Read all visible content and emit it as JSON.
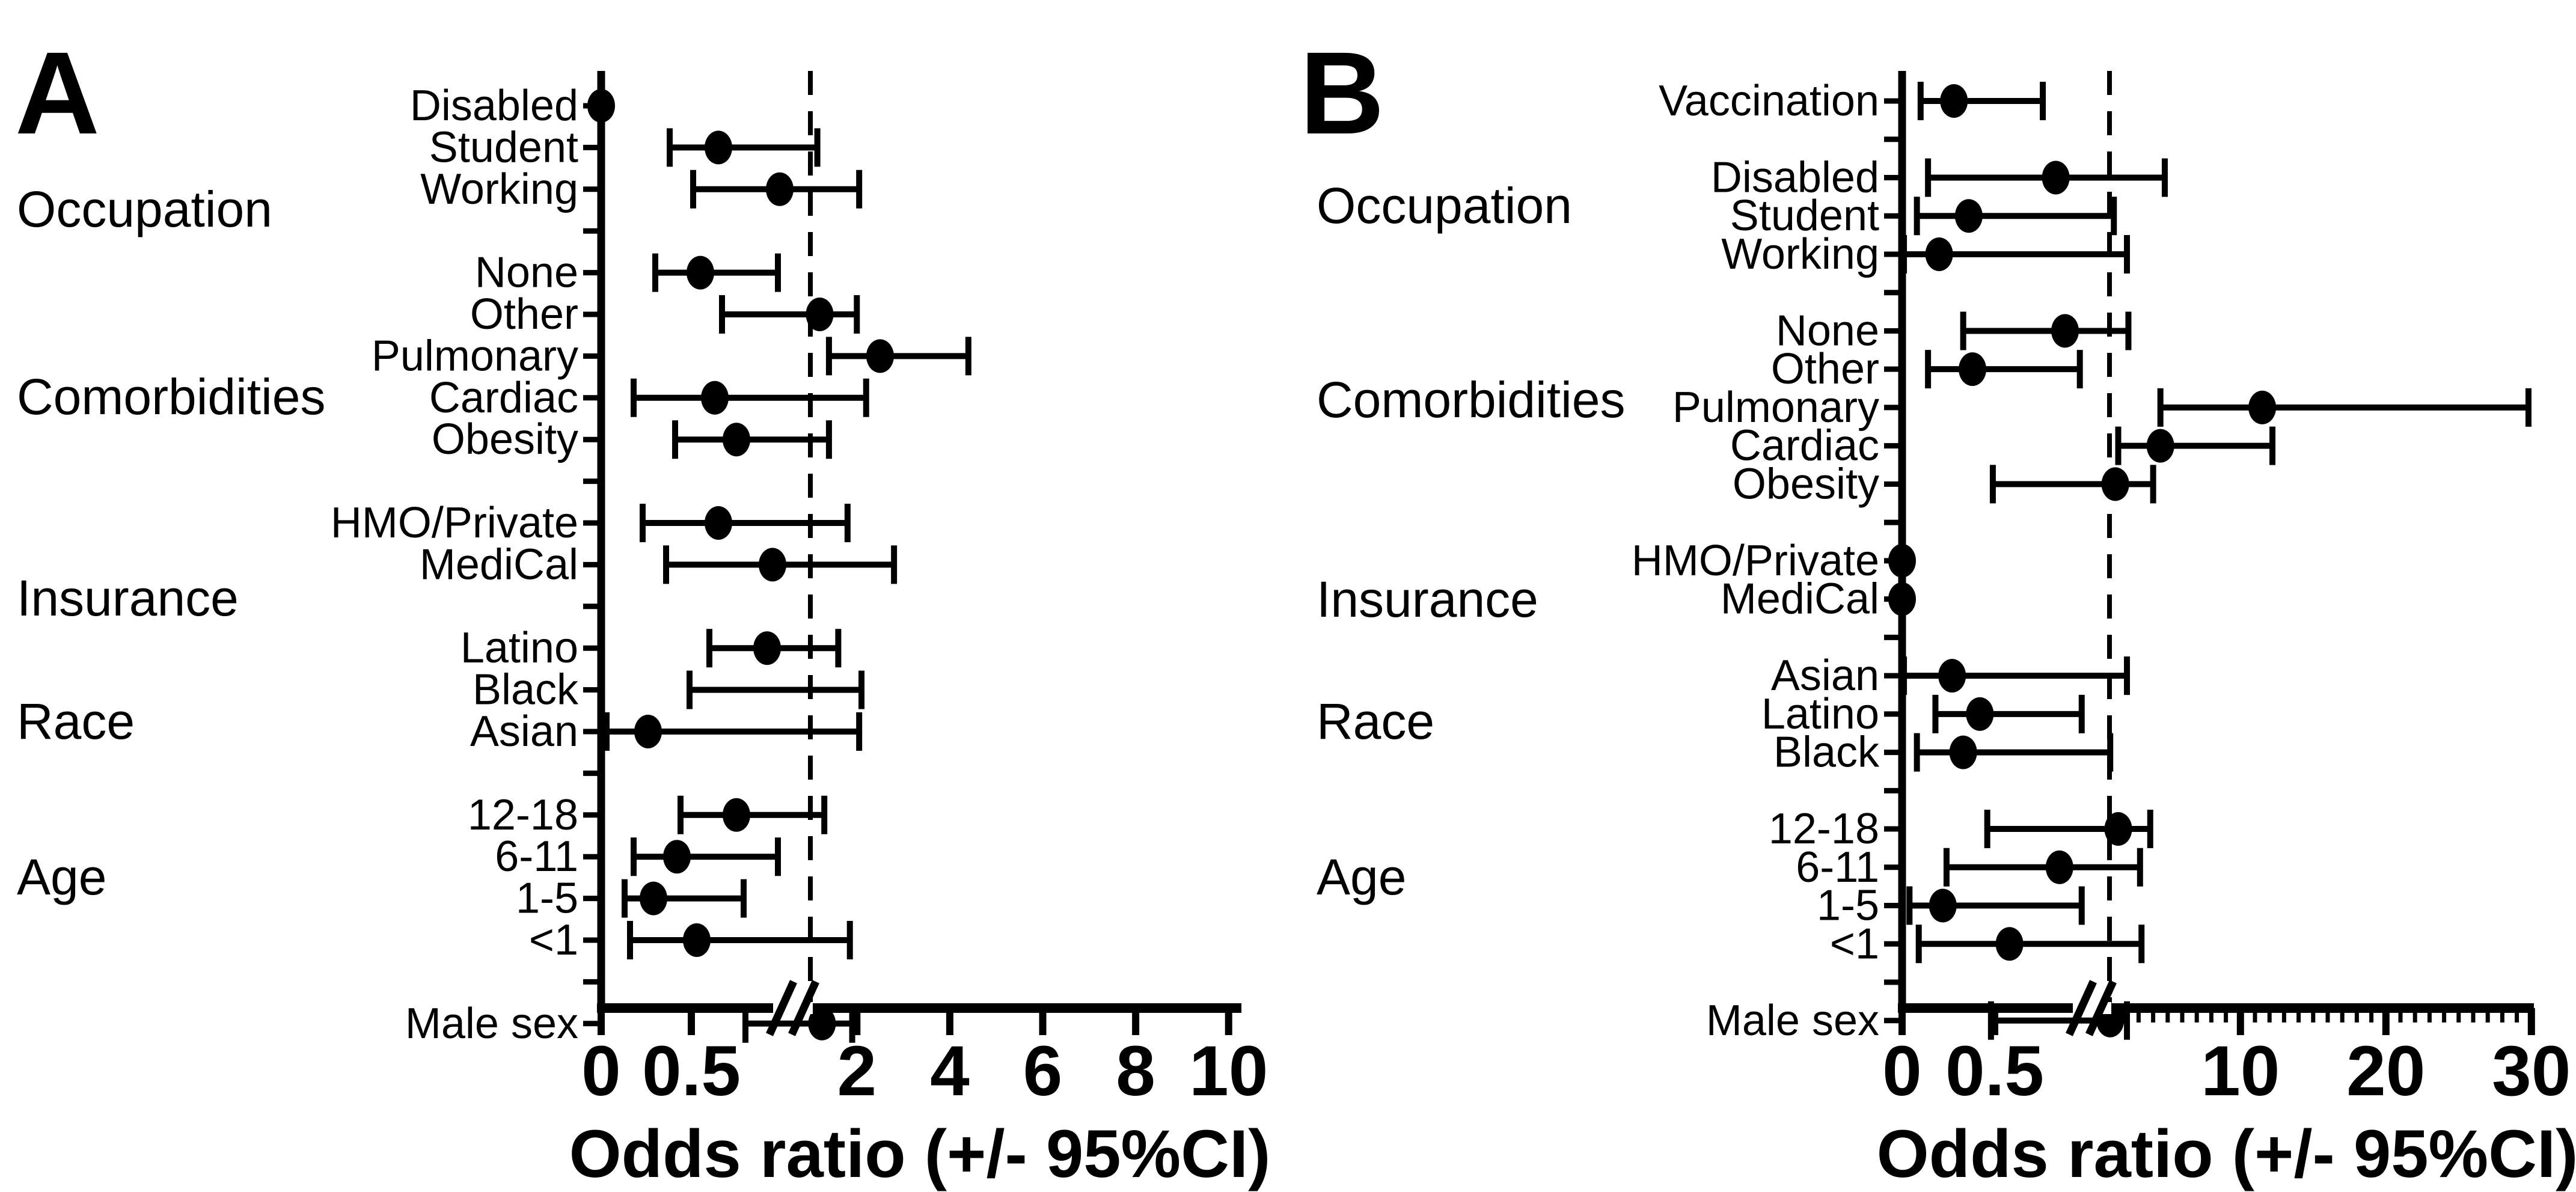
{
  "figure": {
    "background": "#ffffff",
    "ink_color": "#000000",
    "axis_title": "Odds ratio (+/- 95%CI)"
  },
  "chart_data": [
    {
      "type": "scatter",
      "subtype": "forest-plot",
      "panel_letter": "A",
      "xlabel": "Odds ratio (+/- 95%CI)",
      "reference_line_value": 1,
      "axis_break": true,
      "x_ticks_left": [
        {
          "v": 0,
          "label": "0"
        },
        {
          "v": 0.5,
          "label": "0.5"
        }
      ],
      "x_ticks_right": [
        {
          "v": 2,
          "label": "2"
        },
        {
          "v": 4,
          "label": "4"
        },
        {
          "v": 6,
          "label": "6"
        },
        {
          "v": 8,
          "label": "8"
        },
        {
          "v": 10,
          "label": "10"
        }
      ],
      "minor_ticks_right": false,
      "groups": [
        {
          "label": "Occupation"
        },
        {
          "label": "Comorbidities"
        },
        {
          "label": "Insurance"
        },
        {
          "label": "Race"
        },
        {
          "label": "Age"
        }
      ],
      "rows": [
        {
          "label": "Disabled",
          "or": 0.0,
          "lo": null,
          "hi": null,
          "gap_after": false
        },
        {
          "label": "Student",
          "or": 0.65,
          "lo": 0.38,
          "hi": 1.15,
          "gap_after": false
        },
        {
          "label": "Working",
          "or": 0.99,
          "lo": 0.51,
          "hi": 2.05,
          "gap_after": true
        },
        {
          "label": "None",
          "or": 0.55,
          "lo": 0.3,
          "hi": 0.98,
          "gap_after": false
        },
        {
          "label": "Other",
          "or": 1.2,
          "lo": 0.67,
          "hi": 2.0,
          "gap_after": false
        },
        {
          "label": "Pulmonary",
          "or": 2.5,
          "lo": 1.4,
          "hi": 4.4,
          "gap_after": false
        },
        {
          "label": "Cardiac",
          "or": 0.63,
          "lo": 0.18,
          "hi": 2.2,
          "gap_after": false
        },
        {
          "label": "Obesity",
          "or": 0.75,
          "lo": 0.41,
          "hi": 1.4,
          "gap_after": true
        },
        {
          "label": "HMO/Private",
          "or": 0.65,
          "lo": 0.23,
          "hi": 1.8,
          "gap_after": false
        },
        {
          "label": "MediCal",
          "or": 0.95,
          "lo": 0.36,
          "hi": 2.8,
          "gap_after": true
        },
        {
          "label": "Latino",
          "or": 0.92,
          "lo": 0.6,
          "hi": 1.6,
          "gap_after": false
        },
        {
          "label": "Black",
          "or": null,
          "lo": 0.49,
          "hi": 2.1,
          "gap_after": false
        },
        {
          "label": "Asian",
          "or": 0.26,
          "lo": 0.03,
          "hi": 2.05,
          "gap_after": true
        },
        {
          "label": "12-18",
          "or": 0.75,
          "lo": 0.44,
          "hi": 1.3,
          "gap_after": false
        },
        {
          "label": "6-11",
          "or": 0.42,
          "lo": 0.18,
          "hi": 0.98,
          "gap_after": false
        },
        {
          "label": "1-5",
          "or": 0.29,
          "lo": 0.13,
          "hi": 0.79,
          "gap_after": false
        },
        {
          "label": "<1",
          "or": 0.53,
          "lo": 0.16,
          "hi": 1.85,
          "gap_after": true
        },
        {
          "label": "Male sex",
          "or": 1.25,
          "lo": 0.8,
          "hi": 1.9,
          "gap_after": false
        }
      ]
    },
    {
      "type": "scatter",
      "subtype": "forest-plot",
      "panel_letter": "B",
      "xlabel": "Odds ratio (+/- 95%CI)",
      "reference_line_value": 1,
      "axis_break": true,
      "x_ticks_left": [
        {
          "v": 0,
          "label": "0"
        },
        {
          "v": 0.5,
          "label": "0.5"
        }
      ],
      "x_ticks_right": [
        {
          "v": 10,
          "label": "10"
        },
        {
          "v": 20,
          "label": "20"
        },
        {
          "v": 30,
          "label": "30"
        }
      ],
      "minor_ticks_right": true,
      "groups": [
        {
          "label": "Occupation"
        },
        {
          "label": "Comorbidities"
        },
        {
          "label": "Insurance"
        },
        {
          "label": "Race"
        },
        {
          "label": "Age"
        }
      ],
      "rows": [
        {
          "label": "Vaccination",
          "or": 0.28,
          "lo": 0.1,
          "hi": 0.76,
          "gap_after": true
        },
        {
          "label": "Disabled",
          "or": 0.83,
          "lo": 0.14,
          "hi": 4.8,
          "gap_after": false
        },
        {
          "label": "Student",
          "or": 0.36,
          "lo": 0.08,
          "hi": 1.3,
          "gap_after": false
        },
        {
          "label": "Working",
          "or": 0.2,
          "lo": 0.01,
          "hi": 2.2,
          "gap_after": true
        },
        {
          "label": "None",
          "or": 0.88,
          "lo": 0.33,
          "hi": 2.3,
          "gap_after": false
        },
        {
          "label": "Other",
          "or": 0.38,
          "lo": 0.14,
          "hi": 0.96,
          "gap_after": false
        },
        {
          "label": "Pulmonary",
          "or": 11.5,
          "lo": 4.5,
          "hi": 29.8,
          "gap_after": false
        },
        {
          "label": "Cardiac",
          "or": 4.5,
          "lo": 1.6,
          "hi": 12.2,
          "gap_after": false
        },
        {
          "label": "Obesity",
          "or": 1.4,
          "lo": 0.49,
          "hi": 4.0,
          "gap_after": true
        },
        {
          "label": "HMO/Private",
          "or": 0.0,
          "lo": null,
          "hi": null,
          "gap_after": false
        },
        {
          "label": "MediCal",
          "or": 0.0,
          "lo": null,
          "hi": null,
          "gap_after": true
        },
        {
          "label": "Asian",
          "or": 0.27,
          "lo": 0.01,
          "hi": 2.2,
          "gap_after": false
        },
        {
          "label": "Latino",
          "or": 0.42,
          "lo": 0.18,
          "hi": 0.97,
          "gap_after": false
        },
        {
          "label": "Black",
          "or": 0.33,
          "lo": 0.08,
          "hi": 1.05,
          "gap_after": true
        },
        {
          "label": "12-18",
          "or": 1.6,
          "lo": 0.46,
          "hi": 3.8,
          "gap_after": false
        },
        {
          "label": "6-11",
          "or": 0.85,
          "lo": 0.24,
          "hi": 3.1,
          "gap_after": false
        },
        {
          "label": "1-5",
          "or": 0.22,
          "lo": 0.04,
          "hi": 0.97,
          "gap_after": false
        },
        {
          "label": "<1",
          "or": 0.58,
          "lo": 0.09,
          "hi": 3.2,
          "gap_after": true
        },
        {
          "label": "Male sex",
          "or": 1.05,
          "lo": 0.48,
          "hi": 2.2,
          "gap_after": false
        }
      ]
    }
  ]
}
